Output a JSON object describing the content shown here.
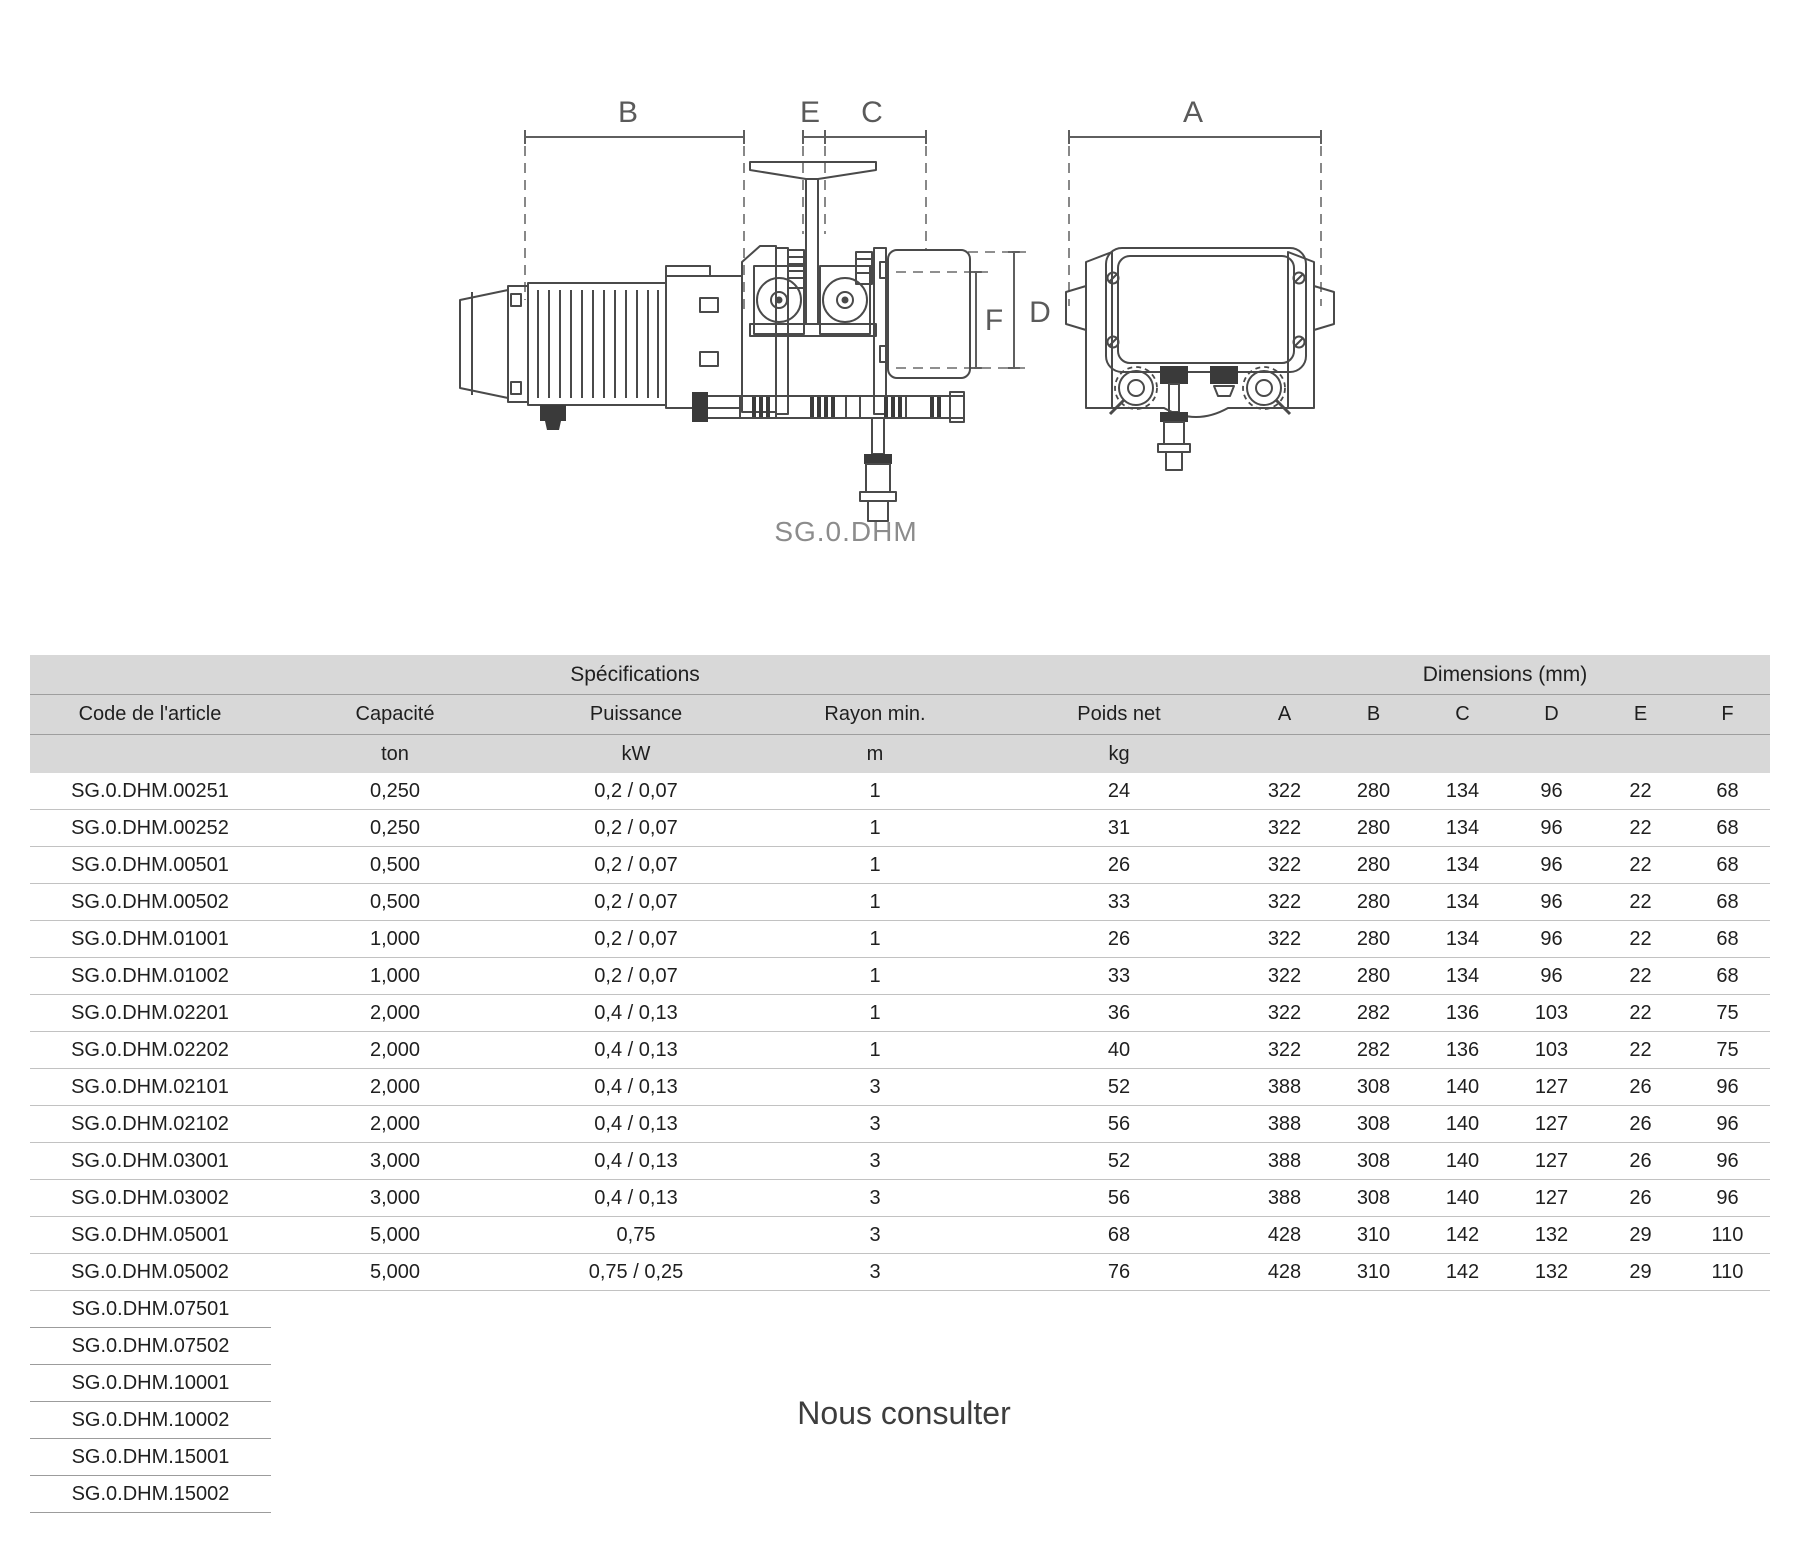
{
  "page": {
    "caption": "SG.0.DHM",
    "consult_note": "Nous consulter"
  },
  "diagram": {
    "labels": {
      "A": "A",
      "B": "B",
      "C": "C",
      "D": "D",
      "E": "E",
      "F": "F"
    }
  },
  "table": {
    "group_headers": {
      "specifications": "Spécifications",
      "dimensions": "Dimensions (mm)"
    },
    "columns": [
      "Code de l'article",
      "Capacité",
      "Puissance",
      "Rayon min.",
      "Poids net",
      "A",
      "B",
      "C",
      "D",
      "E",
      "F"
    ],
    "units": [
      "",
      "ton",
      "kW",
      "m",
      "kg",
      "",
      "",
      "",
      "",
      "",
      ""
    ],
    "rows": [
      [
        "SG.0.DHM.00251",
        "0,250",
        "0,2 / 0,07",
        "1",
        "24",
        "322",
        "280",
        "134",
        "96",
        "22",
        "68"
      ],
      [
        "SG.0.DHM.00252",
        "0,250",
        "0,2 / 0,07",
        "1",
        "31",
        "322",
        "280",
        "134",
        "96",
        "22",
        "68"
      ],
      [
        "SG.0.DHM.00501",
        "0,500",
        "0,2 / 0,07",
        "1",
        "26",
        "322",
        "280",
        "134",
        "96",
        "22",
        "68"
      ],
      [
        "SG.0.DHM.00502",
        "0,500",
        "0,2 / 0,07",
        "1",
        "33",
        "322",
        "280",
        "134",
        "96",
        "22",
        "68"
      ],
      [
        "SG.0.DHM.01001",
        "1,000",
        "0,2 / 0,07",
        "1",
        "26",
        "322",
        "280",
        "134",
        "96",
        "22",
        "68"
      ],
      [
        "SG.0.DHM.01002",
        "1,000",
        "0,2 / 0,07",
        "1",
        "33",
        "322",
        "280",
        "134",
        "96",
        "22",
        "68"
      ],
      [
        "SG.0.DHM.02201",
        "2,000",
        "0,4 / 0,13",
        "1",
        "36",
        "322",
        "282",
        "136",
        "103",
        "22",
        "75"
      ],
      [
        "SG.0.DHM.02202",
        "2,000",
        "0,4 / 0,13",
        "1",
        "40",
        "322",
        "282",
        "136",
        "103",
        "22",
        "75"
      ],
      [
        "SG.0.DHM.02101",
        "2,000",
        "0,4 / 0,13",
        "3",
        "52",
        "388",
        "308",
        "140",
        "127",
        "26",
        "96"
      ],
      [
        "SG.0.DHM.02102",
        "2,000",
        "0,4 / 0,13",
        "3",
        "56",
        "388",
        "308",
        "140",
        "127",
        "26",
        "96"
      ],
      [
        "SG.0.DHM.03001",
        "3,000",
        "0,4 / 0,13",
        "3",
        "52",
        "388",
        "308",
        "140",
        "127",
        "26",
        "96"
      ],
      [
        "SG.0.DHM.03002",
        "3,000",
        "0,4 / 0,13",
        "3",
        "56",
        "388",
        "308",
        "140",
        "127",
        "26",
        "96"
      ],
      [
        "SG.0.DHM.05001",
        "5,000",
        "0,75",
        "3",
        "68",
        "428",
        "310",
        "142",
        "132",
        "29",
        "110"
      ],
      [
        "SG.0.DHM.05002",
        "5,000",
        "0,75 / 0,25",
        "3",
        "76",
        "428",
        "310",
        "142",
        "132",
        "29",
        "110"
      ]
    ],
    "consult_codes": [
      "SG.0.DHM.07501",
      "SG.0.DHM.07502",
      "SG.0.DHM.10001",
      "SG.0.DHM.10002",
      "SG.0.DHM.15001",
      "SG.0.DHM.15002"
    ]
  },
  "colors": {
    "header_band": "#d8d8d8",
    "row_border": "#c2c2c2",
    "text": "#1f1f1f",
    "drawing_stroke": "#4a4a4a",
    "caption_gray": "#8c8c8c"
  }
}
